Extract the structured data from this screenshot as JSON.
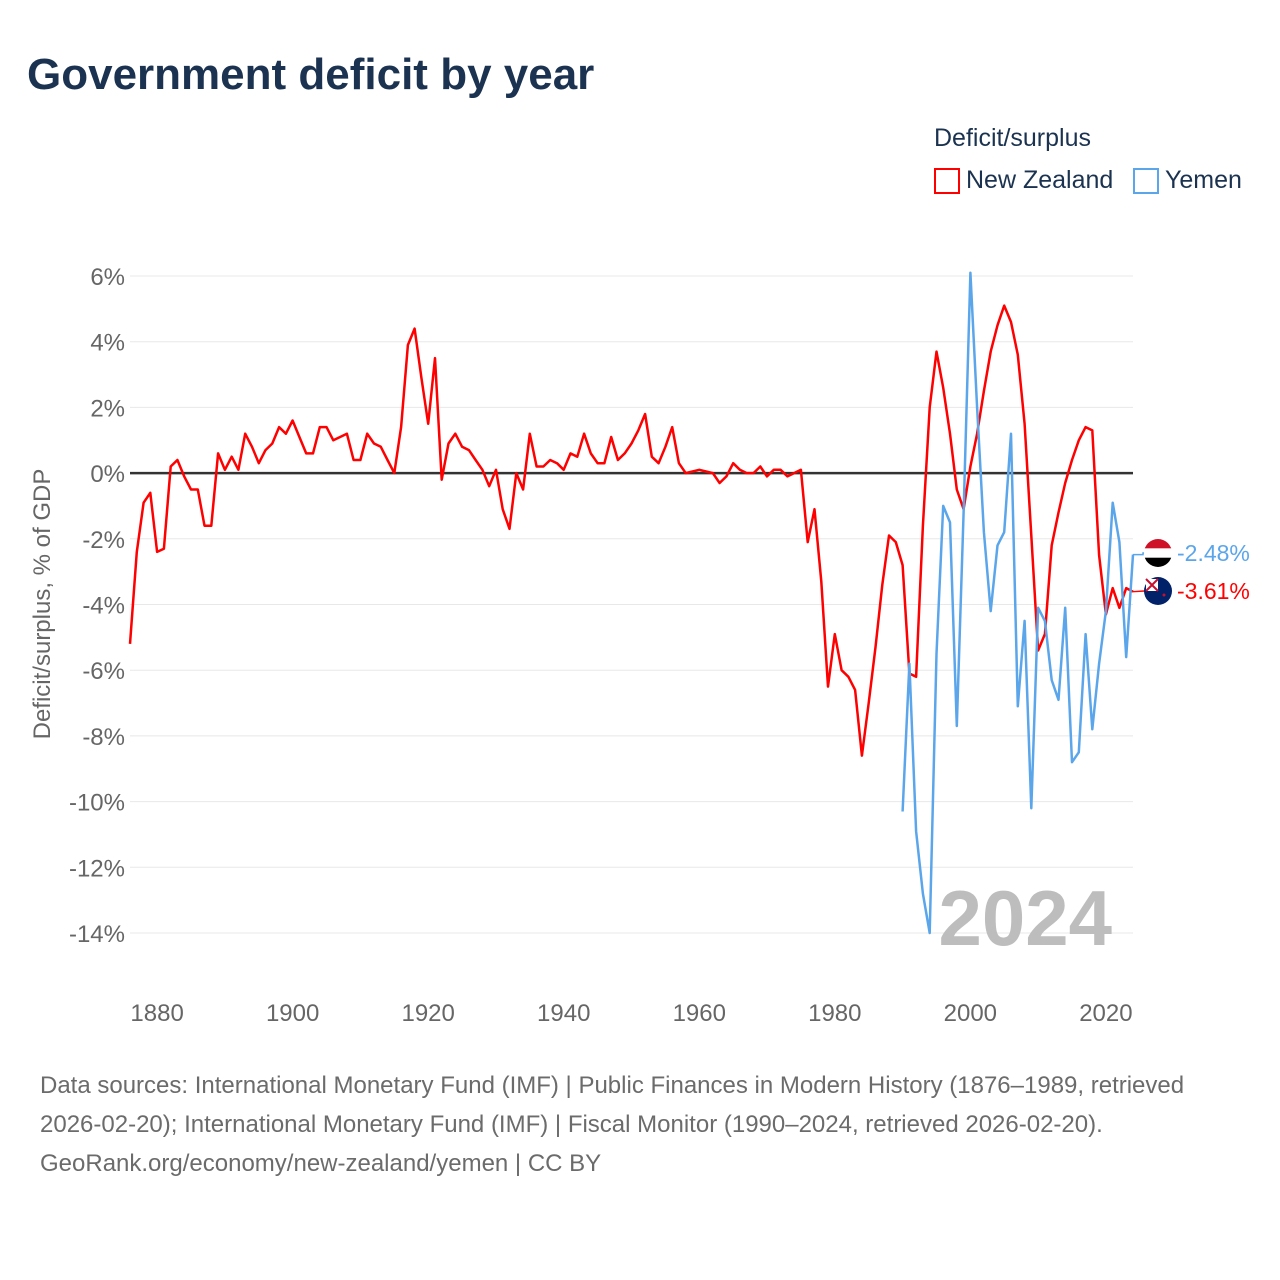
{
  "title": "Government deficit by year",
  "legend": {
    "title": "Deficit/surplus"
  },
  "sources": "Data sources: International Monetary Fund (IMF) | Public Finances in Modern History (1876–1989, retrieved 2026-02-20); International Monetary Fund (IMF) | Fiscal Monitor (1990–2024, retrieved 2026-02-20).",
  "credit": "GeoRank.org/economy/new-zealand/yemen | CC BY",
  "chart_data": {
    "type": "line",
    "title": "Government deficit by year",
    "ylabel": "Deficit/surplus, % of GDP",
    "xlabel": "",
    "xlim": [
      1876,
      2024
    ],
    "ylim": [
      -14,
      6
    ],
    "x_ticks": [
      1880,
      1900,
      1920,
      1940,
      1960,
      1980,
      2000,
      2020
    ],
    "x_tick_labels": [
      "1880",
      "1900",
      "1920",
      "1940",
      "1960",
      "1980",
      "2000",
      "2020"
    ],
    "y_ticks": [
      6,
      4,
      2,
      0,
      -2,
      -4,
      -6,
      -8,
      -10,
      -12,
      -14
    ],
    "y_tick_labels": [
      "6%",
      "4%",
      "2%",
      "0%",
      "-2%",
      "-4%",
      "-6%",
      "-8%",
      "-10%",
      "-12%",
      "-14%"
    ],
    "grid": true,
    "legend_position": "top-right",
    "year_annotation": "2024",
    "series": [
      {
        "name": "New Zealand",
        "color": "#ff0000",
        "start_year": 1876,
        "end_label": "-3.61%",
        "values": [
          -5.2,
          -2.4,
          -0.9,
          -0.6,
          -2.4,
          -2.3,
          0.2,
          0.4,
          -0.1,
          -0.5,
          -0.5,
          -1.6,
          -1.6,
          0.6,
          0.1,
          0.5,
          0.1,
          1.2,
          0.8,
          0.3,
          0.7,
          0.9,
          1.4,
          1.2,
          1.6,
          1.1,
          0.6,
          0.6,
          1.4,
          1.4,
          1.0,
          1.1,
          1.2,
          0.4,
          0.4,
          1.2,
          0.9,
          0.8,
          0.4,
          0.0,
          1.4,
          3.9,
          4.4,
          2.9,
          1.5,
          3.5,
          -0.2,
          0.9,
          1.2,
          0.8,
          0.7,
          0.4,
          0.1,
          -0.4,
          0.1,
          -1.1,
          -1.7,
          0.0,
          -0.5,
          1.2,
          0.2,
          0.2,
          0.4,
          0.3,
          0.1,
          0.6,
          0.5,
          1.2,
          0.6,
          0.3,
          0.3,
          1.1,
          0.4,
          0.6,
          0.9,
          1.3,
          1.8,
          0.5,
          0.3,
          0.8,
          1.4,
          0.3,
          0.0,
          0.05,
          0.1,
          0.05,
          0.0,
          -0.3,
          -0.1,
          0.3,
          0.1,
          0.0,
          0.0,
          0.2,
          -0.1,
          0.1,
          0.1,
          -0.1,
          0.0,
          0.1,
          -2.1,
          -1.1,
          -3.3,
          -6.5,
          -4.9,
          -6.0,
          -6.2,
          -6.6,
          -8.6,
          -7.0,
          -5.3,
          -3.4,
          -1.9,
          -2.1,
          -2.8,
          -6.1,
          -6.2,
          -1.6,
          2.0,
          3.7,
          2.6,
          1.2,
          -0.5,
          -1.1,
          0.2,
          1.2,
          2.5,
          3.7,
          4.5,
          5.1,
          4.6,
          3.6,
          1.5,
          -1.9,
          -5.4,
          -4.9,
          -2.2,
          -1.2,
          -0.3,
          0.4,
          1.0,
          1.4,
          1.3,
          -2.5,
          -4.3,
          -3.5,
          -4.1,
          -3.5,
          -3.61
        ]
      },
      {
        "name": "Yemen",
        "color": "#5ba6ea",
        "start_year": 1990,
        "end_label": "-2.48%",
        "values": [
          -10.3,
          -5.8,
          -10.9,
          -12.8,
          -14.0,
          -5.5,
          -1.0,
          -1.5,
          -7.7,
          -1.2,
          6.1,
          2.0,
          -1.8,
          -4.2,
          -2.2,
          -1.8,
          1.2,
          -7.1,
          -4.5,
          -10.2,
          -4.1,
          -4.5,
          -6.3,
          -6.9,
          -4.1,
          -8.8,
          -8.5,
          -4.9,
          -7.8,
          -5.8,
          -4.2,
          -0.9,
          -2.1,
          -5.6,
          -2.48
        ]
      }
    ]
  }
}
